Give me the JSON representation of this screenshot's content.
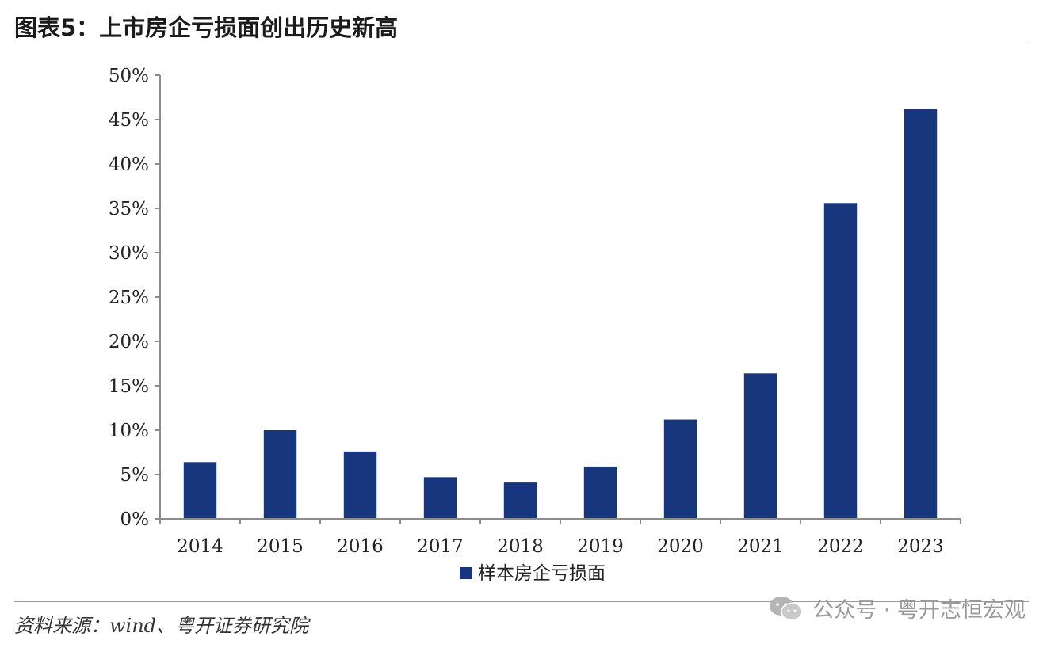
{
  "header": {
    "title": "图表5：上市房企亏损面创出历史新高"
  },
  "footer": {
    "source": "资料来源：wind、粤开证券研究院"
  },
  "watermark": {
    "text": "公众号 · 粤开志恒宏观",
    "icon": "wechat-icon"
  },
  "colors": {
    "bar": "#17367e",
    "axis": "#8c8c8c"
  },
  "chart_data": {
    "type": "bar",
    "categories": [
      "2014",
      "2015",
      "2016",
      "2017",
      "2018",
      "2019",
      "2020",
      "2021",
      "2022",
      "2023"
    ],
    "series": [
      {
        "name": "样本房企亏损面",
        "values": [
          6.4,
          10.0,
          7.6,
          4.7,
          4.1,
          5.9,
          11.2,
          16.4,
          35.6,
          46.2
        ]
      }
    ],
    "yticks": [
      "0%",
      "5%",
      "10%",
      "15%",
      "20%",
      "25%",
      "30%",
      "35%",
      "40%",
      "45%",
      "50%"
    ],
    "ylim": [
      0,
      50
    ],
    "legend_position": "bottom-center",
    "grid": false
  }
}
